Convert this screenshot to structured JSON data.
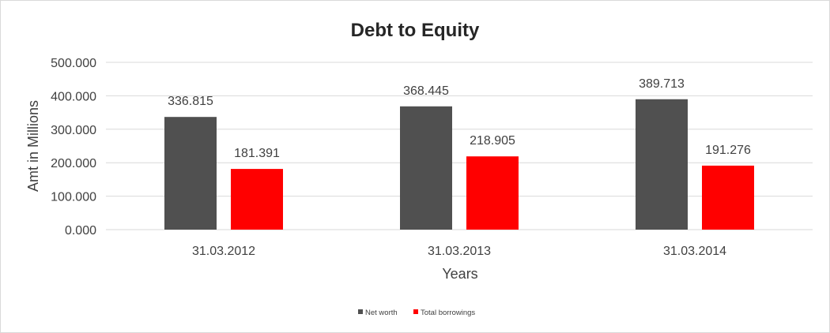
{
  "chart_data": {
    "type": "bar",
    "title": "Debt to Equity",
    "xlabel": "Years",
    "ylabel": "Amt in Millions",
    "categories": [
      "31.03.2012",
      "31.03.2013",
      "31.03.2014"
    ],
    "series": [
      {
        "name": "Net worth",
        "values": [
          336.815,
          368.445,
          389.713
        ],
        "color": "#505050"
      },
      {
        "name": "Total borrowings",
        "values": [
          181.391,
          218.905,
          191.276
        ],
        "color": "#ff0000"
      }
    ],
    "data_labels": [
      [
        "336.815",
        "368.445",
        "389.713"
      ],
      [
        "181.391",
        "218.905",
        "191.276"
      ]
    ],
    "ylim": [
      0,
      500
    ],
    "y_ticks": [
      {
        "value": 0,
        "label": "0.000"
      },
      {
        "value": 100,
        "label": "100.000"
      },
      {
        "value": 200,
        "label": "200.000"
      },
      {
        "value": 300,
        "label": "300.000"
      },
      {
        "value": 400,
        "label": "400.000"
      },
      {
        "value": 500,
        "label": "500.000"
      }
    ],
    "grid": true,
    "legend_position": "bottom"
  }
}
